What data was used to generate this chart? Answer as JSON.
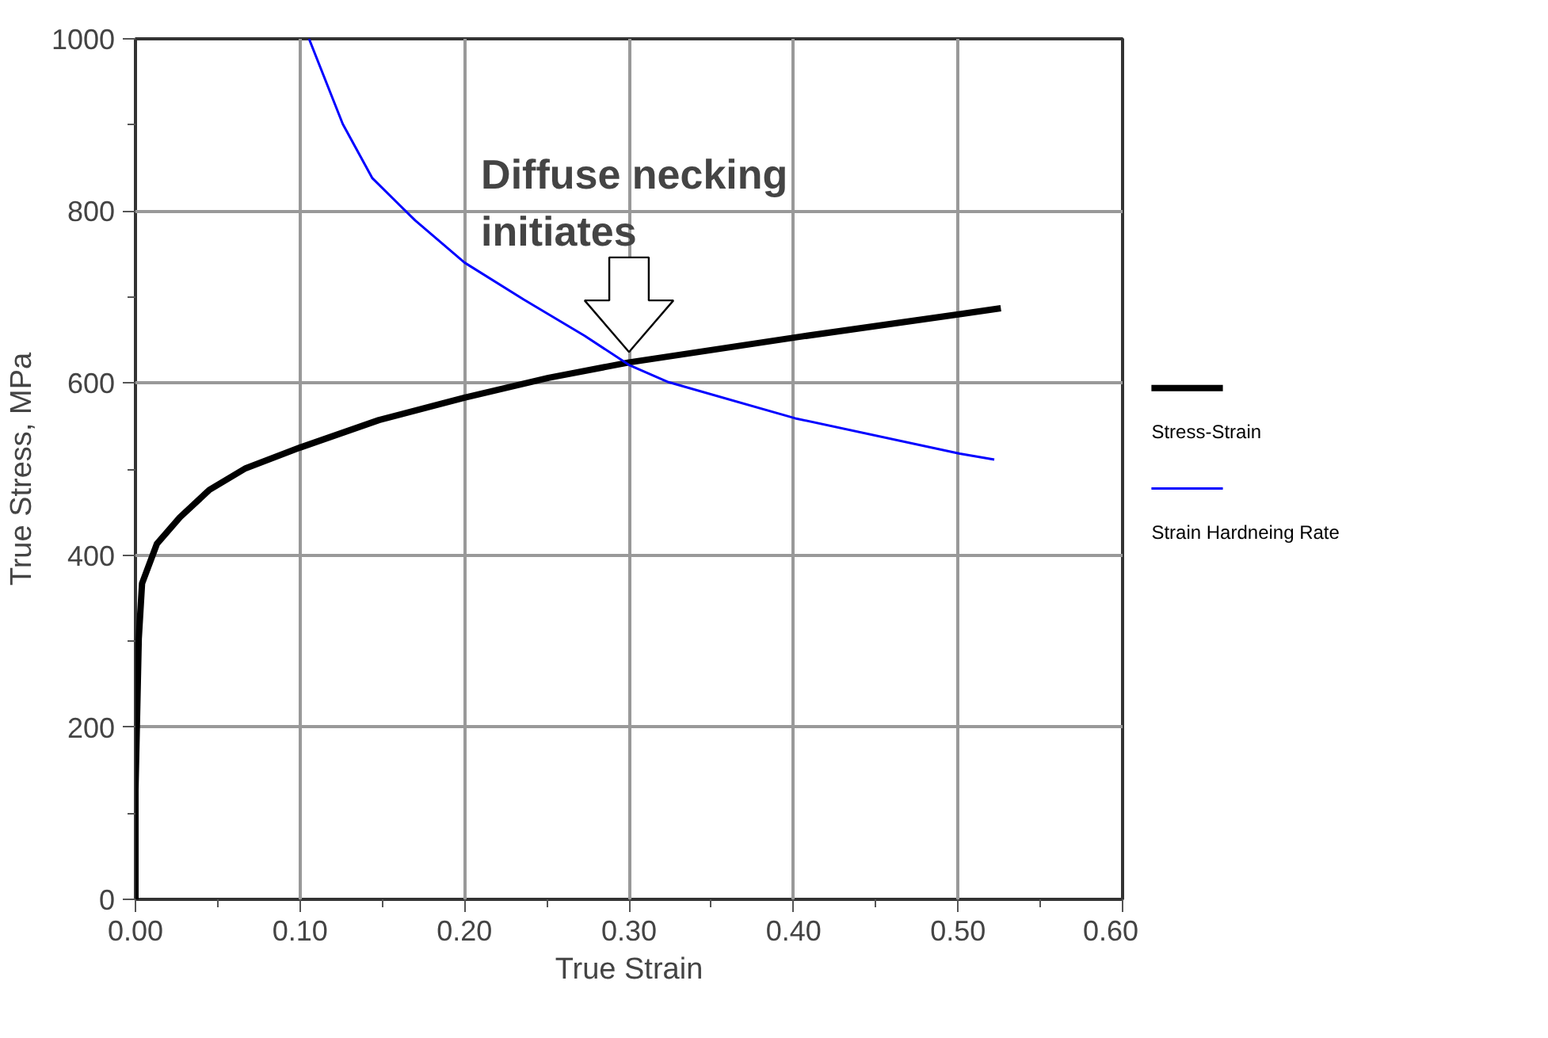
{
  "chart_data": {
    "type": "line",
    "xlabel": "True Strain",
    "ylabel": "True Stress, MPa",
    "xlim": [
      0,
      0.6
    ],
    "ylim": [
      0,
      1000
    ],
    "xticks": [
      {
        "value": 0,
        "label": "0.00"
      },
      {
        "value": 0.1,
        "label": "0.10"
      },
      {
        "value": 0.2,
        "label": "0.20"
      },
      {
        "value": 0.3,
        "label": "0.30"
      },
      {
        "value": 0.4,
        "label": "0.40"
      },
      {
        "value": 0.5,
        "label": "0.50"
      },
      {
        "value": 0.6,
        "label": "0.60"
      }
    ],
    "yticks": [
      0,
      200,
      400,
      600,
      800,
      1000
    ],
    "grid": true,
    "legend": "right",
    "marker": "none",
    "line_style": "solid",
    "series": [
      {
        "name": "Stress-Strain",
        "color": "#000000",
        "x": [
          0,
          0.0,
          0.002,
          0.004,
          0.013,
          0.027,
          0.045,
          0.067,
          0.1,
          0.148,
          0.2,
          0.251,
          0.3,
          0.401,
          0.501,
          0.526
        ],
        "values": [
          0,
          127,
          303,
          367,
          413,
          444,
          476,
          501,
          525,
          557,
          583,
          606,
          624,
          653,
          680,
          687
        ]
      },
      {
        "name": "Strain Hardneing Rate",
        "color": "#0000ff",
        "x": [
          0.1055,
          0.126,
          0.144,
          0.17,
          0.2,
          0.236,
          0.273,
          0.3,
          0.324,
          0.401,
          0.501,
          0.522
        ],
        "values": [
          1000,
          901,
          838,
          789,
          740,
          697,
          655,
          621,
          601,
          559,
          518,
          511
        ]
      }
    ],
    "annotations": [
      {
        "text": "Diffuse necking initiates",
        "x": 0.3,
        "y": 621
      }
    ]
  }
}
